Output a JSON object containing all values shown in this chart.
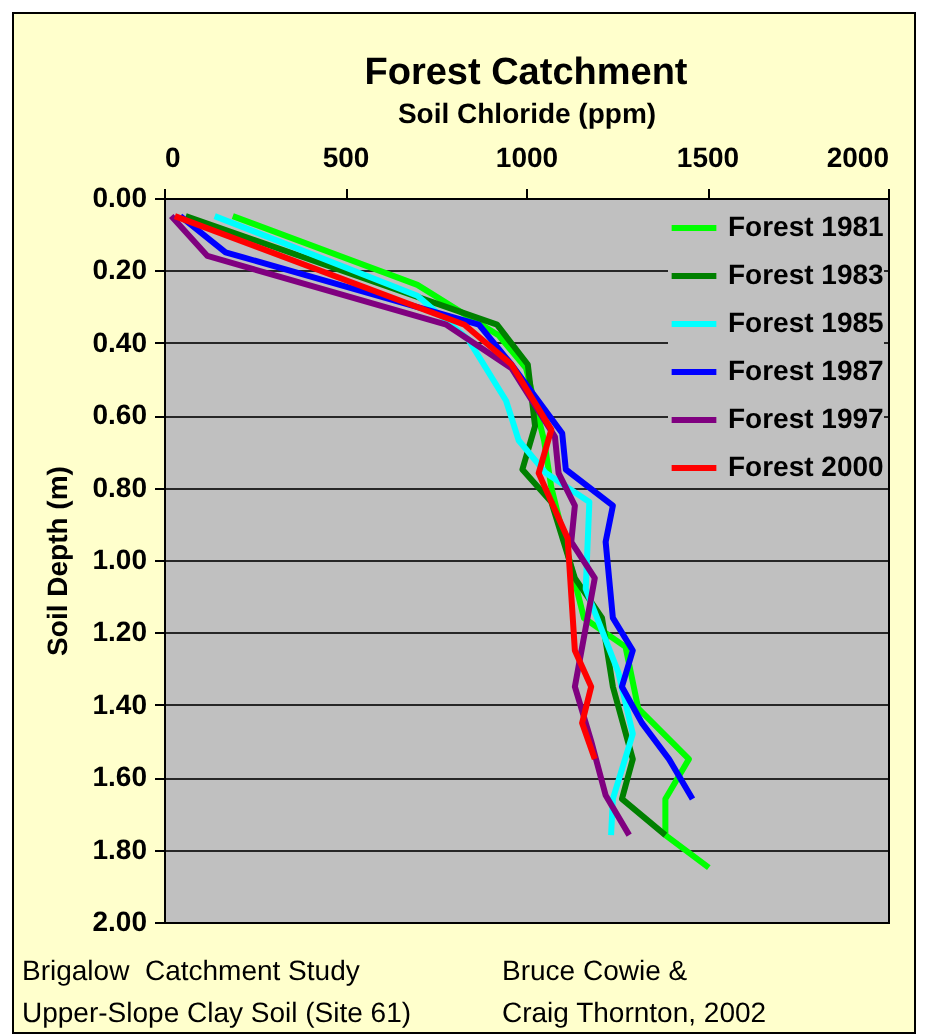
{
  "chart_data": {
    "type": "line",
    "title": "Forest Catchment",
    "xlabel": "Soil Chloride (ppm)",
    "ylabel": "Soil Depth (m)",
    "xlim": [
      0,
      2000
    ],
    "xticks": [
      0,
      500,
      1000,
      1500,
      2000
    ],
    "ylim": [
      2.0,
      0.0
    ],
    "yticks": [
      {
        "value": 0,
        "label": "0.00"
      },
      {
        "value": 0.2,
        "label": "0.20"
      },
      {
        "value": 0.4,
        "label": "0.40"
      },
      {
        "value": 0.6,
        "label": "0.60"
      },
      {
        "value": 0.8,
        "label": "0.80"
      },
      {
        "value": 1.0,
        "label": "1.00"
      },
      {
        "value": 1.2,
        "label": "1.20"
      },
      {
        "value": 1.4,
        "label": "1.40"
      },
      {
        "value": 1.6,
        "label": "1.60"
      },
      {
        "value": 1.8,
        "label": "1.80"
      },
      {
        "value": 2.0,
        "label": "2.00"
      }
    ],
    "grid": "y",
    "legend": "top right",
    "line_style": "solid",
    "series": [
      {
        "name": "Forest 1981",
        "color": "#00ff00",
        "x": [
          190,
          700,
          925,
          1000,
          1050,
          1070,
          1160,
          1275,
          1310,
          1450,
          1385,
          1385,
          1505
        ],
        "values": [
          0.05,
          0.24,
          0.38,
          0.47,
          0.67,
          0.8,
          1.16,
          1.24,
          1.41,
          1.55,
          1.66,
          1.76,
          1.85
        ]
      },
      {
        "name": "Forest 1983",
        "color": "#008000",
        "x": [
          60,
          920,
          1005,
          1025,
          990,
          1070,
          1135,
          1210,
          1240,
          1295,
          1265,
          1385
        ],
        "values": [
          0.05,
          0.35,
          0.46,
          0.63,
          0.75,
          0.84,
          1.05,
          1.16,
          1.35,
          1.55,
          1.66,
          1.76
        ]
      },
      {
        "name": "Forest 1985",
        "color": "#00ffff",
        "x": [
          140,
          700,
          840,
          945,
          980,
          1055,
          1175,
          1165,
          1255,
          1295,
          1240,
          1235
        ],
        "values": [
          0.05,
          0.27,
          0.39,
          0.56,
          0.67,
          0.76,
          0.84,
          1.08,
          1.31,
          1.48,
          1.66,
          1.76
        ]
      },
      {
        "name": "Forest 1987",
        "color": "#0000ff",
        "x": [
          45,
          170,
          870,
          960,
          1100,
          1110,
          1240,
          1220,
          1240,
          1295,
          1265,
          1320,
          1395,
          1460
        ],
        "values": [
          0.05,
          0.15,
          0.35,
          0.46,
          0.65,
          0.75,
          0.85,
          0.95,
          1.16,
          1.25,
          1.35,
          1.45,
          1.55,
          1.66
        ]
      },
      {
        "name": "Forest 1997",
        "color": "#800080",
        "x": [
          20,
          120,
          780,
          960,
          1080,
          1090,
          1135,
          1125,
          1190,
          1135,
          1180,
          1220,
          1285
        ],
        "values": [
          0.05,
          0.16,
          0.35,
          0.47,
          0.66,
          0.76,
          0.85,
          0.95,
          1.05,
          1.35,
          1.5,
          1.65,
          1.76
        ]
      },
      {
        "name": "Forest 2000",
        "color": "#ff0000",
        "x": [
          30,
          830,
          960,
          1070,
          1035,
          1115,
          1135,
          1180,
          1155,
          1190
        ],
        "values": [
          0.05,
          0.35,
          0.46,
          0.64,
          0.76,
          0.94,
          1.25,
          1.35,
          1.45,
          1.55
        ]
      }
    ],
    "annotations": [
      "Brigalow  Catchment Study",
      "Bruce Cowie &",
      "Upper-Slope Clay Soil (Site 61)",
      "Craig Thornton, 2002"
    ]
  }
}
